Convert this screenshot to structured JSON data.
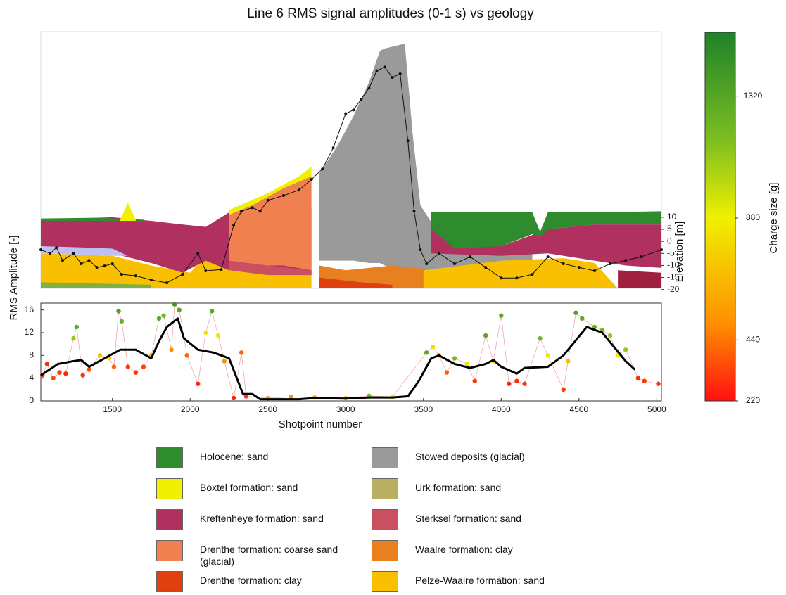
{
  "chart_data": [
    {
      "type": "area",
      "title": "Line 6 RMS signal amplitudes (0-1 s) vs geology",
      "ylabel": "Elevation [m]",
      "xlim": [
        1040,
        5030
      ],
      "ylim": [
        -19.5,
        87
      ],
      "yticks": [
        10,
        5,
        0,
        -5,
        -10,
        -15,
        -20
      ],
      "layers": [
        {
          "color": "#f8c000",
          "x": [
            1040,
            1500,
            1750,
            2000,
            2100,
            2250,
            2780
          ],
          "top": [
            -5,
            -6,
            -10,
            -13,
            -6,
            -12,
            -12
          ],
          "bottom": [
            -19.5,
            -19.5,
            -19.5,
            -19.5,
            -19.5,
            -19.5,
            -19.5
          ]
        },
        {
          "color": "#80b040",
          "x": [
            1040,
            1750
          ],
          "top": [
            -17,
            -18
          ],
          "bottom": [
            -19.5,
            -19.5
          ]
        },
        {
          "color": "#b03060",
          "x": [
            1040,
            1500,
            1750,
            1950,
            2100,
            2250,
            2780
          ],
          "top": [
            9,
            10,
            8.5,
            7,
            6,
            12,
            14
          ],
          "bottom": [
            -2,
            -5,
            -9,
            -13,
            -8,
            -12,
            -14
          ]
        },
        {
          "color": "#c0c0f0",
          "x": [
            1040,
            1300,
            1500,
            1600
          ],
          "top": [
            -2,
            -2.5,
            -3,
            -6
          ],
          "bottom": [
            -5,
            -5.5,
            -6,
            -6
          ]
        },
        {
          "color": "#2e8b2e",
          "x": [
            1040,
            1400,
            1700
          ],
          "top": [
            9.5,
            9.8,
            9
          ],
          "bottom": [
            8.5,
            8.5,
            8
          ]
        },
        {
          "color": "#f0f000",
          "x": [
            1550,
            1600,
            1650
          ],
          "top": [
            9,
            16,
            9
          ],
          "bottom": [
            8.5,
            8.5,
            8.5
          ]
        },
        {
          "color": "#f0f000",
          "x": [
            2250,
            2500,
            2700,
            2780
          ],
          "top": [
            13,
            20,
            27,
            31
          ],
          "bottom": [
            10,
            15,
            22,
            26
          ]
        },
        {
          "color": "#f08050",
          "x": [
            2250,
            2400,
            2600,
            2780
          ],
          "top": [
            11,
            15,
            22,
            27
          ],
          "bottom": [
            -8,
            -10,
            -10,
            -12
          ]
        },
        {
          "color": "#c85060",
          "x": [
            2250,
            2500,
            2780
          ],
          "top": [
            -8,
            -10,
            -12
          ],
          "bottom": [
            -12,
            -14,
            -14
          ]
        },
        {
          "color": "#f0f000",
          "x": [
            2830,
            2900
          ],
          "top": [
            28,
            32
          ],
          "bottom": [
            24,
            27
          ]
        },
        {
          "color": "#9a9a9a",
          "x": [
            2830,
            2950,
            3050,
            3150,
            3220,
            3250,
            3380,
            3430,
            3480,
            3550,
            3700,
            4200
          ],
          "top": [
            28,
            40,
            52,
            66,
            79,
            80,
            82,
            45,
            15,
            8,
            -4,
            -4
          ],
          "bottom": [
            -8,
            -8,
            -8,
            -9,
            -9,
            -10,
            -12,
            -13,
            -13,
            -12,
            -12,
            -12
          ]
        },
        {
          "color": "#e88020",
          "x": [
            2830,
            3000,
            3300,
            3600,
            4000
          ],
          "top": [
            -10,
            -12,
            -10,
            -12,
            -13
          ],
          "bottom": [
            -19.5,
            -19.5,
            -19.5,
            -19.5,
            -19.5
          ]
        },
        {
          "color": "#e04010",
          "x": [
            2830,
            3100,
            3300
          ],
          "top": [
            -15,
            -17,
            -18
          ],
          "bottom": [
            -19.5,
            -19.5,
            -19.5
          ]
        },
        {
          "color": "#f8c000",
          "x": [
            3500,
            4000,
            4400,
            4600,
            4750
          ],
          "top": [
            -12,
            -8,
            -7,
            -9,
            -19.5
          ],
          "bottom": [
            -19.5,
            -19.5,
            -19.5,
            -19.5,
            -19.5
          ]
        },
        {
          "color": "#b03060",
          "x": [
            3550,
            4000,
            4300,
            4600,
            4800,
            5030
          ],
          "top": [
            5,
            -2,
            5,
            7,
            7,
            7
          ],
          "bottom": [
            -5,
            -6,
            -5,
            -8,
            -10,
            -11
          ]
        },
        {
          "color": "#2e8b2e",
          "x": [
            3550,
            3700,
            4000,
            4200,
            4250,
            4300,
            4600,
            5030
          ],
          "top": [
            12,
            12,
            12,
            12,
            4,
            12,
            12,
            12.5
          ],
          "bottom": [
            5,
            -3,
            -2,
            3,
            2,
            5,
            7,
            7
          ]
        },
        {
          "color": "#a02040",
          "x": [
            4750,
            5030
          ],
          "top": [
            -12,
            -13
          ],
          "bottom": [
            -19.5,
            -19.5
          ]
        }
      ],
      "line": {
        "color": "#111111",
        "x": [
          1040,
          1100,
          1140,
          1180,
          1250,
          1300,
          1350,
          1400,
          1450,
          1500,
          1560,
          1650,
          1750,
          1850,
          1950,
          2050,
          2100,
          2200,
          2280,
          2330,
          2400,
          2450,
          2500,
          2600,
          2700,
          2780,
          2850,
          2920,
          3000,
          3050,
          3100,
          3150,
          3200,
          3250,
          3300,
          3350,
          3400,
          3440,
          3480,
          3520,
          3600,
          3700,
          3800,
          3900,
          4000,
          4100,
          4200,
          4300,
          4400,
          4500,
          4600,
          4700,
          4800,
          4900,
          5030
        ],
        "values": [
          -3.5,
          -5,
          -2.6,
          -7.9,
          -5,
          -9.3,
          -7.9,
          -10.8,
          -10.2,
          -9.3,
          -13.7,
          -14.3,
          -16,
          -17.2,
          -13.7,
          -5,
          -12.2,
          -11.7,
          6.7,
          12.5,
          14,
          12.5,
          17,
          19,
          21.3,
          25.7,
          30,
          38.8,
          53,
          54.5,
          59,
          63.6,
          70.8,
          72.3,
          68,
          69.5,
          41.7,
          12.5,
          -3.5,
          -9.3,
          -5,
          -9.3,
          -6.4,
          -10.8,
          -15.2,
          -15.2,
          -13.7,
          -6.4,
          -9.3,
          -10.8,
          -12.2,
          -9.3,
          -7.9,
          -6.4,
          -3.5
        ]
      }
    },
    {
      "type": "line",
      "xlabel": "Shotpoint number",
      "ylabel": "RMS Amplitude [-]",
      "xlim": [
        1040,
        5030
      ],
      "xticks": [
        1500,
        2000,
        2500,
        3000,
        3500,
        4000,
        4500,
        5000
      ],
      "ylim": [
        0,
        17.2
      ],
      "yticks": [
        0,
        4,
        8,
        12,
        16
      ],
      "line": {
        "color": "#000000",
        "x": [
          1040,
          1150,
          1250,
          1300,
          1350,
          1450,
          1550,
          1650,
          1750,
          1800,
          1850,
          1920,
          1960,
          2050,
          2150,
          2250,
          2300,
          2340,
          2400,
          2450,
          2700,
          2800,
          3000,
          3150,
          3300,
          3400,
          3470,
          3550,
          3600,
          3700,
          3800,
          3900,
          3950,
          4000,
          4100,
          4150,
          4300,
          4400,
          4550,
          4650,
          4800,
          4860
        ],
        "values": [
          4.5,
          6.5,
          7,
          7.2,
          6,
          7.5,
          9,
          9,
          7.5,
          10.5,
          13,
          14.5,
          11,
          9,
          8.5,
          7.5,
          4,
          1.2,
          1.2,
          0.3,
          0.3,
          0.5,
          0.4,
          0.6,
          0.6,
          0.8,
          3.5,
          7.5,
          8,
          6.5,
          5.8,
          6.5,
          7.2,
          6,
          4.8,
          5.8,
          6,
          8,
          13,
          12,
          7,
          5.5
        ]
      },
      "points": {
        "x": [
          1050,
          1080,
          1120,
          1160,
          1200,
          1250,
          1270,
          1310,
          1350,
          1420,
          1480,
          1510,
          1540,
          1560,
          1600,
          1650,
          1700,
          1750,
          1800,
          1830,
          1880,
          1900,
          1930,
          1980,
          2050,
          2100,
          2140,
          2180,
          2220,
          2280,
          2330,
          2360,
          2500,
          2650,
          2800,
          3000,
          3150,
          3300,
          3520,
          3560,
          3600,
          3650,
          3700,
          3780,
          3830,
          3900,
          3950,
          4000,
          4050,
          4100,
          4150,
          4250,
          4300,
          4400,
          4430,
          4480,
          4520,
          4600,
          4650,
          4700,
          4750,
          4800,
          4880,
          4920,
          5010
        ],
        "values": [
          4.5,
          6.5,
          4,
          5,
          4.8,
          11,
          13,
          4.5,
          5.5,
          8,
          7.5,
          6,
          15.8,
          14,
          6,
          5,
          6,
          8,
          14.5,
          15,
          9,
          17,
          16,
          8,
          3,
          12,
          15.8,
          11.5,
          7,
          0.5,
          8.5,
          0.8,
          0.5,
          0.7,
          0.6,
          0.5,
          0.9,
          0.7,
          8.5,
          9.5,
          8,
          5,
          7.5,
          6.5,
          3.5,
          11.5,
          7,
          15,
          3,
          3.5,
          3,
          11,
          8,
          2,
          7,
          15.5,
          14.5,
          13,
          12.5,
          11.5,
          8,
          9,
          4,
          3.5,
          3
        ],
        "charge": [
          300,
          280,
          350,
          300,
          260,
          1100,
          1300,
          300,
          350,
          700,
          780,
          400,
          1350,
          1250,
          300,
          280,
          320,
          700,
          1300,
          1200,
          500,
          1400,
          1300,
          400,
          260,
          900,
          1300,
          850,
          500,
          240,
          400,
          300,
          600,
          500,
          600,
          700,
          1200,
          900,
          1300,
          800,
          500,
          400,
          1200,
          900,
          300,
          1300,
          800,
          1300,
          260,
          280,
          300,
          1200,
          900,
          300,
          700,
          1350,
          1300,
          1250,
          1200,
          1100,
          850,
          1100,
          280,
          300,
          300
        ]
      }
    },
    {
      "type": "colorbar",
      "label": "Charge size [g]",
      "lim": [
        220,
        1550
      ],
      "ticks": [
        220,
        440,
        880,
        1320
      ],
      "colormap": [
        {
          "value": 220,
          "color": "#ff1010"
        },
        {
          "value": 500,
          "color": "#ff9000"
        },
        {
          "value": 880,
          "color": "#f0f000"
        },
        {
          "value": 1150,
          "color": "#80c020"
        },
        {
          "value": 1550,
          "color": "#1e8228"
        }
      ]
    }
  ],
  "legend": [
    {
      "name": "Holocene: sand",
      "color": "#2e8b2e"
    },
    {
      "name": "Stowed deposits (glacial)",
      "color": "#9a9a9a"
    },
    {
      "name": "Boxtel formation: sand",
      "color": "#f0f000"
    },
    {
      "name": "Urk formation: sand",
      "color": "#b8b060"
    },
    {
      "name": "Kreftenheye formation: sand",
      "color": "#b03060"
    },
    {
      "name": "Sterksel formation: sand",
      "color": "#c85060"
    },
    {
      "name": "Drenthe formation: coarse sand (glacial)",
      "color": "#f08050"
    },
    {
      "name": "Waalre formation: clay",
      "color": "#e88020"
    },
    {
      "name": "Drenthe formation: clay",
      "color": "#e04010"
    },
    {
      "name": "Pelze-Waalre formation: sand",
      "color": "#f8c000"
    }
  ]
}
